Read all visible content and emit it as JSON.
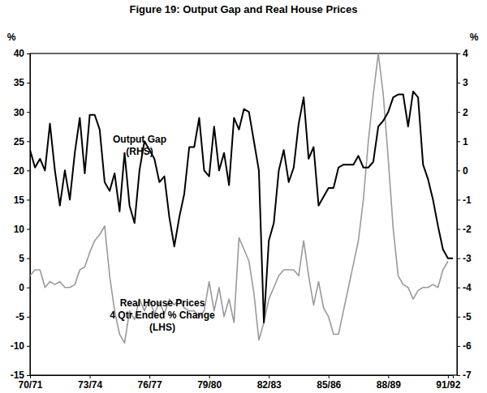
{
  "chart_data": {
    "type": "line",
    "title": "Figure 19: Output Gap and Real House Prices",
    "ylabel": "%",
    "y2label": "%",
    "categories": [
      "70/71",
      null,
      null,
      null,
      null,
      null,
      null,
      null,
      null,
      null,
      null,
      null,
      "73/74",
      null,
      null,
      null,
      null,
      null,
      null,
      null,
      null,
      null,
      null,
      null,
      "76/77",
      null,
      null,
      null,
      null,
      null,
      null,
      null,
      null,
      null,
      null,
      null,
      "79/80",
      null,
      null,
      null,
      null,
      null,
      null,
      null,
      null,
      null,
      null,
      null,
      "82/83",
      null,
      null,
      null,
      null,
      null,
      null,
      null,
      null,
      null,
      null,
      null,
      "85/86",
      null,
      null,
      null,
      null,
      null,
      null,
      null,
      null,
      null,
      null,
      null,
      "88/89",
      null,
      null,
      null,
      null,
      null,
      null,
      null,
      null,
      null,
      null,
      null,
      "91/92",
      null
    ],
    "series": [
      {
        "axis": "y2",
        "color": "#000000",
        "values": [
          0.7,
          0.1,
          0.4,
          0,
          1.6,
          0,
          -1.2,
          0,
          -1,
          0.6,
          1.8,
          -0.1,
          1.9,
          1.9,
          1.4,
          -0.4,
          -0.7,
          -0.1,
          -1.4,
          0.6,
          -1.2,
          -1.8,
          0,
          1,
          0.7,
          0.4,
          -0.4,
          -0.2,
          -1.6,
          -2.6,
          -1.6,
          -0.8,
          0.8,
          0.8,
          1.8,
          0,
          -0.2,
          1.5,
          0,
          0.6,
          -0.5,
          1.8,
          1.4,
          2.1,
          2,
          1,
          0,
          -5.2,
          -2.4,
          -1.8,
          0,
          0.7,
          -0.4,
          0.1,
          1.6,
          2.5,
          0.4,
          0.8,
          -1.2,
          -0.9,
          -0.6,
          -0.6,
          0.1,
          0.2,
          0.2,
          0.2,
          0.5,
          0.1,
          0.1,
          0.3,
          1.5,
          1.7,
          2,
          2.5,
          2.6,
          2.6,
          1.5,
          2.7,
          2.5,
          0.2,
          -0.3,
          -1,
          -1.9,
          -2.7,
          -3,
          -3
        ]
      },
      {
        "color": "#9a9a9a",
        "values": [
          2,
          3,
          3,
          0,
          1,
          0.5,
          1,
          0,
          0,
          0.5,
          3,
          3.5,
          6,
          8,
          9,
          10.5,
          2,
          -4,
          -8,
          -9.5,
          -4,
          -5.5,
          -2,
          -4,
          -2,
          -4.5,
          -2.5,
          -4.5,
          -2,
          -3,
          -2,
          -3.5,
          -4,
          -4,
          -5,
          -4,
          1,
          -4,
          0,
          -5,
          -2,
          -6,
          8.5,
          6.5,
          4.5,
          -1,
          -9,
          -6,
          -2,
          0,
          2,
          3,
          3,
          3,
          2,
          8,
          2,
          -3,
          1,
          -3.5,
          -5,
          -8,
          -8,
          -4,
          0,
          4,
          8,
          15,
          25,
          33,
          40,
          33,
          22,
          10,
          2,
          0.5,
          0,
          -2,
          -0.5,
          0,
          0,
          0.5,
          0,
          3,
          4.5,
          null
        ]
      }
    ],
    "annotations": [
      [
        "Output Gap",
        "(RHS)"
      ],
      [
        "Real House Prices",
        "4 Qtr Ended % Change",
        "(LHS)"
      ]
    ],
    "ylim": [
      -15,
      40
    ],
    "yticks": [
      -15,
      -10,
      -5,
      0,
      5,
      10,
      15,
      20,
      25,
      30,
      35,
      40
    ],
    "y2lim": [
      -7,
      4
    ],
    "y2ticks": [
      -7,
      -6,
      -5,
      -4,
      -3,
      -2,
      -1,
      0,
      1,
      2,
      3,
      4
    ],
    "grid": false
  }
}
